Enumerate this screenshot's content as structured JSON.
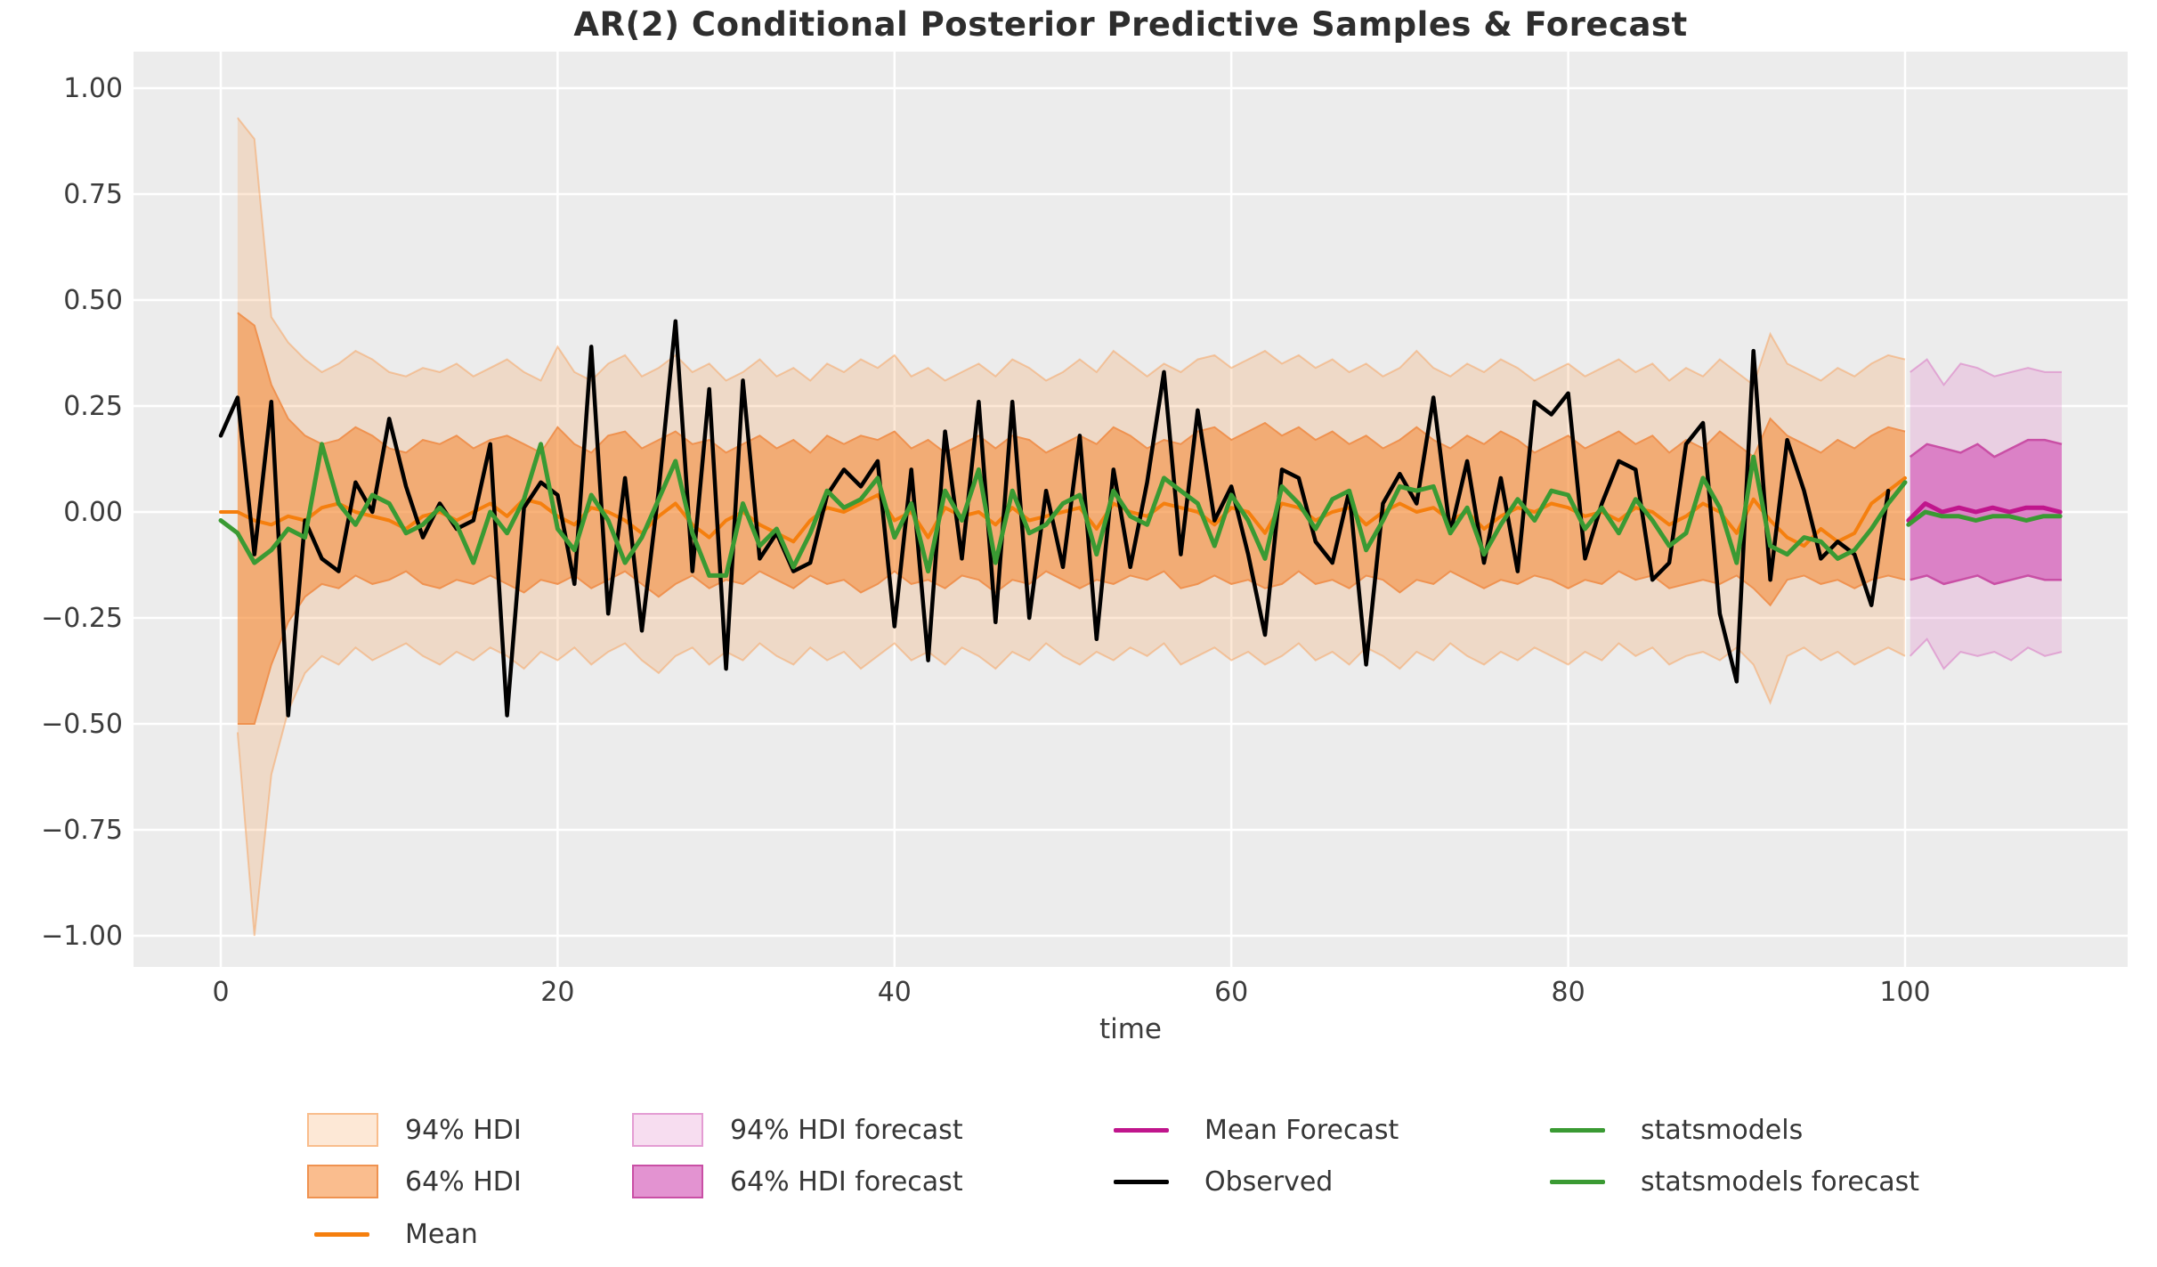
{
  "title": "AR(2) Conditional Posterior Predictive Samples & Forecast",
  "axes": {
    "xlabel": "time",
    "x_tick_values": [
      0,
      20,
      40,
      60,
      80,
      100
    ],
    "x_tick_labels": [
      "0",
      "20",
      "40",
      "60",
      "80",
      "100"
    ],
    "y_tick_values": [
      1.0,
      0.75,
      0.5,
      0.25,
      0.0,
      -0.25,
      -0.5,
      -0.75,
      -1.0
    ],
    "y_tick_labels": [
      "1.00",
      "0.75",
      "0.50",
      "0.25",
      "0.00",
      "−0.25",
      "−0.50",
      "−0.75",
      "−1.00"
    ],
    "x_range": [
      -5.2,
      113.2
    ],
    "y_range": [
      -1.075,
      1.085
    ],
    "grid": true
  },
  "colors": {
    "background": "#ffffff",
    "plot_background": "#ececec",
    "grid": "#ffffff",
    "hdi94_fill": "rgba(247,150,70,0.22)",
    "hdi94_edge": "rgba(246,160,90,0.5)",
    "hdi64_fill": "rgba(245,135,50,0.55)",
    "hdi64_edge": "#ef9250",
    "f94_fill": "rgba(226,132,202,0.28)",
    "f94_edge": "rgba(219,128,198,0.6)",
    "f64_fill": "rgba(210,80,180,0.62)",
    "f64_edge": "#c94fa5",
    "mean": "#f57f0e",
    "observed": "#000000",
    "statsmodels": "#3a9a33",
    "mean_forecast": "#c0158c",
    "tick_text": "#3c3c3c",
    "title_text": "#2e2e2e"
  },
  "legend": {
    "items": [
      {
        "label": "94% HDI",
        "kind": "patch",
        "fill": "rgba(247,150,70,0.22)",
        "edge": "rgba(246,160,90,0.6)"
      },
      {
        "label": "64% HDI",
        "kind": "patch",
        "fill": "rgba(245,135,50,0.55)",
        "edge": "#ef9250"
      },
      {
        "label": "Mean",
        "kind": "line",
        "color": "#f57f0e"
      },
      {
        "label": "94% HDI forecast",
        "kind": "patch",
        "fill": "rgba(226,132,202,0.28)",
        "edge": "rgba(219,128,198,0.7)"
      },
      {
        "label": "64% HDI forecast",
        "kind": "patch",
        "fill": "rgba(210,80,180,0.62)",
        "edge": "#c94fa5"
      },
      {
        "label": "Mean Forecast",
        "kind": "line",
        "color": "#c0158c"
      },
      {
        "label": "Observed",
        "kind": "line",
        "color": "#000000"
      },
      {
        "label": "statsmodels",
        "kind": "line",
        "color": "#3a9a33"
      },
      {
        "label": "statsmodels forecast",
        "kind": "line",
        "color": "#3a9a33"
      }
    ]
  },
  "chart_data": {
    "type": "line",
    "title": "AR(2) Conditional Posterior Predictive Samples & Forecast",
    "xlabel": "time",
    "ylabel": "",
    "xlim": [
      -5.2,
      113.2
    ],
    "ylim": [
      -1.075,
      1.085
    ],
    "legend_position": "below",
    "series": [
      {
        "name": "Observed",
        "x0": 0,
        "step": 1,
        "color": "#000000",
        "values": [
          0.18,
          0.27,
          -0.1,
          0.26,
          -0.48,
          -0.02,
          -0.11,
          -0.14,
          0.07,
          0.0,
          0.22,
          0.06,
          -0.06,
          0.02,
          -0.04,
          -0.02,
          0.16,
          -0.48,
          0.01,
          0.07,
          0.04,
          -0.17,
          0.39,
          -0.24,
          0.08,
          -0.28,
          0.05,
          0.45,
          -0.14,
          0.29,
          -0.37,
          0.31,
          -0.11,
          -0.05,
          -0.14,
          -0.12,
          0.04,
          0.1,
          0.06,
          0.12,
          -0.27,
          0.1,
          -0.35,
          0.19,
          -0.11,
          0.26,
          -0.26,
          0.26,
          -0.25,
          0.05,
          -0.13,
          0.18,
          -0.3,
          0.1,
          -0.13,
          0.07,
          0.33,
          -0.1,
          0.24,
          -0.02,
          0.06,
          -0.1,
          -0.29,
          0.1,
          0.08,
          -0.07,
          -0.12,
          0.05,
          -0.36,
          0.02,
          0.09,
          0.02,
          0.27,
          -0.05,
          0.12,
          -0.12,
          0.08,
          -0.14,
          0.26,
          0.23,
          0.28,
          -0.11,
          0.02,
          0.12,
          0.1,
          -0.16,
          -0.12,
          0.16,
          0.21,
          -0.24,
          -0.4,
          0.38,
          -0.16,
          0.17,
          0.05,
          -0.11,
          -0.07,
          -0.1,
          -0.22,
          0.05
        ]
      },
      {
        "name": "Mean",
        "x0": 0,
        "step": 1,
        "color": "#f57f0e",
        "values": [
          0.0,
          0.0,
          -0.02,
          -0.03,
          -0.01,
          -0.02,
          0.01,
          0.02,
          0.0,
          -0.01,
          -0.02,
          -0.04,
          -0.01,
          0.0,
          -0.02,
          0.0,
          0.02,
          -0.01,
          0.03,
          0.02,
          -0.01,
          -0.03,
          0.01,
          0.0,
          -0.02,
          -0.05,
          -0.01,
          0.02,
          -0.03,
          -0.06,
          -0.02,
          0.0,
          -0.03,
          -0.05,
          -0.07,
          -0.02,
          0.01,
          0.0,
          0.02,
          0.04,
          -0.02,
          0.0,
          -0.06,
          0.01,
          -0.01,
          0.0,
          -0.03,
          0.01,
          -0.02,
          -0.01,
          0.0,
          0.01,
          -0.04,
          0.02,
          0.0,
          -0.01,
          0.02,
          0.01,
          0.0,
          -0.03,
          0.01,
          0.0,
          -0.05,
          0.02,
          0.01,
          -0.02,
          0.0,
          0.01,
          -0.03,
          0.0,
          0.02,
          0.0,
          0.01,
          -0.02,
          0.0,
          -0.04,
          -0.01,
          0.01,
          0.0,
          0.02,
          0.01,
          -0.01,
          0.0,
          -0.02,
          0.01,
          0.0,
          -0.03,
          -0.01,
          0.02,
          0.0,
          -0.05,
          0.03,
          -0.02,
          -0.06,
          -0.08,
          -0.04,
          -0.07,
          -0.05,
          0.02,
          0.05,
          0.08
        ]
      },
      {
        "name": "statsmodels",
        "x0": 0,
        "step": 1,
        "color": "#3a9a33",
        "values": [
          -0.02,
          -0.05,
          -0.12,
          -0.09,
          -0.04,
          -0.06,
          0.16,
          0.02,
          -0.03,
          0.04,
          0.02,
          -0.05,
          -0.03,
          0.01,
          -0.03,
          -0.12,
          0.0,
          -0.05,
          0.03,
          0.16,
          -0.04,
          -0.09,
          0.04,
          -0.02,
          -0.12,
          -0.06,
          0.03,
          0.12,
          -0.05,
          -0.15,
          -0.15,
          0.02,
          -0.08,
          -0.04,
          -0.13,
          -0.05,
          0.05,
          0.01,
          0.03,
          0.08,
          -0.06,
          0.02,
          -0.14,
          0.05,
          -0.02,
          0.1,
          -0.12,
          0.05,
          -0.05,
          -0.03,
          0.02,
          0.04,
          -0.1,
          0.05,
          -0.01,
          -0.03,
          0.08,
          0.05,
          0.02,
          -0.08,
          0.04,
          -0.02,
          -0.11,
          0.06,
          0.02,
          -0.04,
          0.03,
          0.05,
          -0.09,
          -0.02,
          0.06,
          0.05,
          0.06,
          -0.05,
          0.01,
          -0.1,
          -0.03,
          0.03,
          -0.02,
          0.05,
          0.04,
          -0.04,
          0.01,
          -0.05,
          0.03,
          -0.02,
          -0.08,
          -0.05,
          0.08,
          0.01,
          -0.12,
          0.13,
          -0.08,
          -0.1,
          -0.06,
          -0.07,
          -0.11,
          -0.09,
          -0.04,
          0.02,
          0.07
        ]
      },
      {
        "name": "Mean Forecast",
        "x0": 100.2,
        "step": 1,
        "color": "#c0158c",
        "values": [
          -0.02,
          0.02,
          0.0,
          0.01,
          0.0,
          0.01,
          0.0,
          0.01,
          0.01,
          0.0
        ]
      },
      {
        "name": "statsmodels forecast",
        "x0": 100.2,
        "step": 1,
        "color": "#3a9a33",
        "values": [
          -0.03,
          0.0,
          -0.01,
          -0.01,
          -0.02,
          -0.01,
          -0.01,
          -0.02,
          -0.01,
          -0.01
        ]
      }
    ],
    "bands": [
      {
        "name": "94% HDI",
        "x0": 1,
        "step": 1,
        "upper": [
          0.93,
          0.88,
          0.46,
          0.4,
          0.36,
          0.33,
          0.35,
          0.38,
          0.36,
          0.33,
          0.32,
          0.34,
          0.33,
          0.35,
          0.32,
          0.34,
          0.36,
          0.33,
          0.31,
          0.39,
          0.33,
          0.31,
          0.35,
          0.37,
          0.32,
          0.34,
          0.37,
          0.33,
          0.35,
          0.31,
          0.33,
          0.36,
          0.32,
          0.34,
          0.31,
          0.35,
          0.33,
          0.36,
          0.34,
          0.37,
          0.32,
          0.34,
          0.31,
          0.33,
          0.35,
          0.32,
          0.36,
          0.34,
          0.31,
          0.33,
          0.36,
          0.33,
          0.38,
          0.35,
          0.32,
          0.35,
          0.33,
          0.36,
          0.37,
          0.34,
          0.36,
          0.38,
          0.35,
          0.37,
          0.34,
          0.36,
          0.33,
          0.35,
          0.32,
          0.34,
          0.38,
          0.34,
          0.32,
          0.35,
          0.33,
          0.36,
          0.34,
          0.31,
          0.33,
          0.35,
          0.32,
          0.34,
          0.36,
          0.33,
          0.35,
          0.31,
          0.34,
          0.32,
          0.36,
          0.33,
          0.3,
          0.42,
          0.35,
          0.33,
          0.31,
          0.34,
          0.32,
          0.35,
          0.37,
          0.36
        ],
        "lower": [
          -0.52,
          -1.0,
          -0.62,
          -0.47,
          -0.38,
          -0.34,
          -0.36,
          -0.32,
          -0.35,
          -0.33,
          -0.31,
          -0.34,
          -0.36,
          -0.33,
          -0.35,
          -0.32,
          -0.34,
          -0.37,
          -0.33,
          -0.35,
          -0.32,
          -0.36,
          -0.33,
          -0.31,
          -0.35,
          -0.38,
          -0.34,
          -0.32,
          -0.36,
          -0.33,
          -0.35,
          -0.31,
          -0.34,
          -0.36,
          -0.32,
          -0.35,
          -0.33,
          -0.37,
          -0.34,
          -0.31,
          -0.35,
          -0.33,
          -0.36,
          -0.32,
          -0.34,
          -0.37,
          -0.33,
          -0.35,
          -0.31,
          -0.34,
          -0.36,
          -0.33,
          -0.35,
          -0.32,
          -0.34,
          -0.31,
          -0.36,
          -0.34,
          -0.32,
          -0.35,
          -0.33,
          -0.36,
          -0.34,
          -0.31,
          -0.35,
          -0.33,
          -0.36,
          -0.32,
          -0.34,
          -0.37,
          -0.33,
          -0.35,
          -0.31,
          -0.34,
          -0.36,
          -0.33,
          -0.35,
          -0.32,
          -0.34,
          -0.36,
          -0.33,
          -0.35,
          -0.31,
          -0.34,
          -0.32,
          -0.36,
          -0.34,
          -0.33,
          -0.35,
          -0.32,
          -0.36,
          -0.45,
          -0.34,
          -0.32,
          -0.35,
          -0.33,
          -0.36,
          -0.34,
          -0.32,
          -0.34
        ]
      },
      {
        "name": "64% HDI",
        "x0": 1,
        "step": 1,
        "upper": [
          0.47,
          0.44,
          0.3,
          0.22,
          0.18,
          0.16,
          0.17,
          0.2,
          0.18,
          0.15,
          0.14,
          0.17,
          0.16,
          0.18,
          0.15,
          0.17,
          0.18,
          0.16,
          0.14,
          0.2,
          0.16,
          0.14,
          0.18,
          0.19,
          0.15,
          0.17,
          0.19,
          0.16,
          0.17,
          0.14,
          0.16,
          0.18,
          0.15,
          0.17,
          0.14,
          0.18,
          0.16,
          0.18,
          0.17,
          0.19,
          0.15,
          0.17,
          0.14,
          0.16,
          0.18,
          0.15,
          0.18,
          0.17,
          0.14,
          0.16,
          0.18,
          0.16,
          0.2,
          0.18,
          0.15,
          0.17,
          0.16,
          0.19,
          0.2,
          0.17,
          0.19,
          0.21,
          0.18,
          0.2,
          0.17,
          0.19,
          0.16,
          0.18,
          0.15,
          0.17,
          0.2,
          0.17,
          0.15,
          0.18,
          0.16,
          0.19,
          0.17,
          0.14,
          0.16,
          0.18,
          0.15,
          0.17,
          0.19,
          0.16,
          0.18,
          0.14,
          0.17,
          0.15,
          0.19,
          0.16,
          0.13,
          0.22,
          0.18,
          0.16,
          0.14,
          0.17,
          0.15,
          0.18,
          0.2,
          0.19
        ],
        "lower": [
          -0.5,
          -0.5,
          -0.36,
          -0.26,
          -0.2,
          -0.17,
          -0.18,
          -0.15,
          -0.17,
          -0.16,
          -0.14,
          -0.17,
          -0.18,
          -0.16,
          -0.17,
          -0.15,
          -0.17,
          -0.19,
          -0.16,
          -0.17,
          -0.15,
          -0.18,
          -0.16,
          -0.14,
          -0.17,
          -0.2,
          -0.17,
          -0.15,
          -0.18,
          -0.16,
          -0.17,
          -0.14,
          -0.16,
          -0.18,
          -0.15,
          -0.17,
          -0.16,
          -0.19,
          -0.17,
          -0.14,
          -0.17,
          -0.16,
          -0.18,
          -0.15,
          -0.16,
          -0.19,
          -0.16,
          -0.17,
          -0.14,
          -0.16,
          -0.18,
          -0.16,
          -0.17,
          -0.15,
          -0.16,
          -0.14,
          -0.18,
          -0.17,
          -0.15,
          -0.17,
          -0.16,
          -0.18,
          -0.17,
          -0.14,
          -0.17,
          -0.16,
          -0.18,
          -0.15,
          -0.16,
          -0.19,
          -0.16,
          -0.17,
          -0.14,
          -0.16,
          -0.18,
          -0.16,
          -0.17,
          -0.15,
          -0.16,
          -0.18,
          -0.16,
          -0.17,
          -0.14,
          -0.16,
          -0.15,
          -0.18,
          -0.17,
          -0.16,
          -0.17,
          -0.15,
          -0.18,
          -0.22,
          -0.16,
          -0.15,
          -0.17,
          -0.16,
          -0.18,
          -0.16,
          -0.15,
          -0.16
        ]
      },
      {
        "name": "94% HDI forecast",
        "x0": 100.3,
        "step": 1,
        "upper": [
          0.33,
          0.36,
          0.3,
          0.35,
          0.34,
          0.32,
          0.33,
          0.34,
          0.33,
          0.33
        ],
        "lower": [
          -0.34,
          -0.3,
          -0.37,
          -0.33,
          -0.34,
          -0.33,
          -0.35,
          -0.32,
          -0.34,
          -0.33
        ]
      },
      {
        "name": "64% HDI forecast",
        "x0": 100.3,
        "step": 1,
        "upper": [
          0.13,
          0.16,
          0.15,
          0.14,
          0.16,
          0.13,
          0.15,
          0.17,
          0.17,
          0.16
        ],
        "lower": [
          -0.16,
          -0.15,
          -0.17,
          -0.16,
          -0.15,
          -0.17,
          -0.16,
          -0.15,
          -0.16,
          -0.16
        ]
      }
    ]
  }
}
